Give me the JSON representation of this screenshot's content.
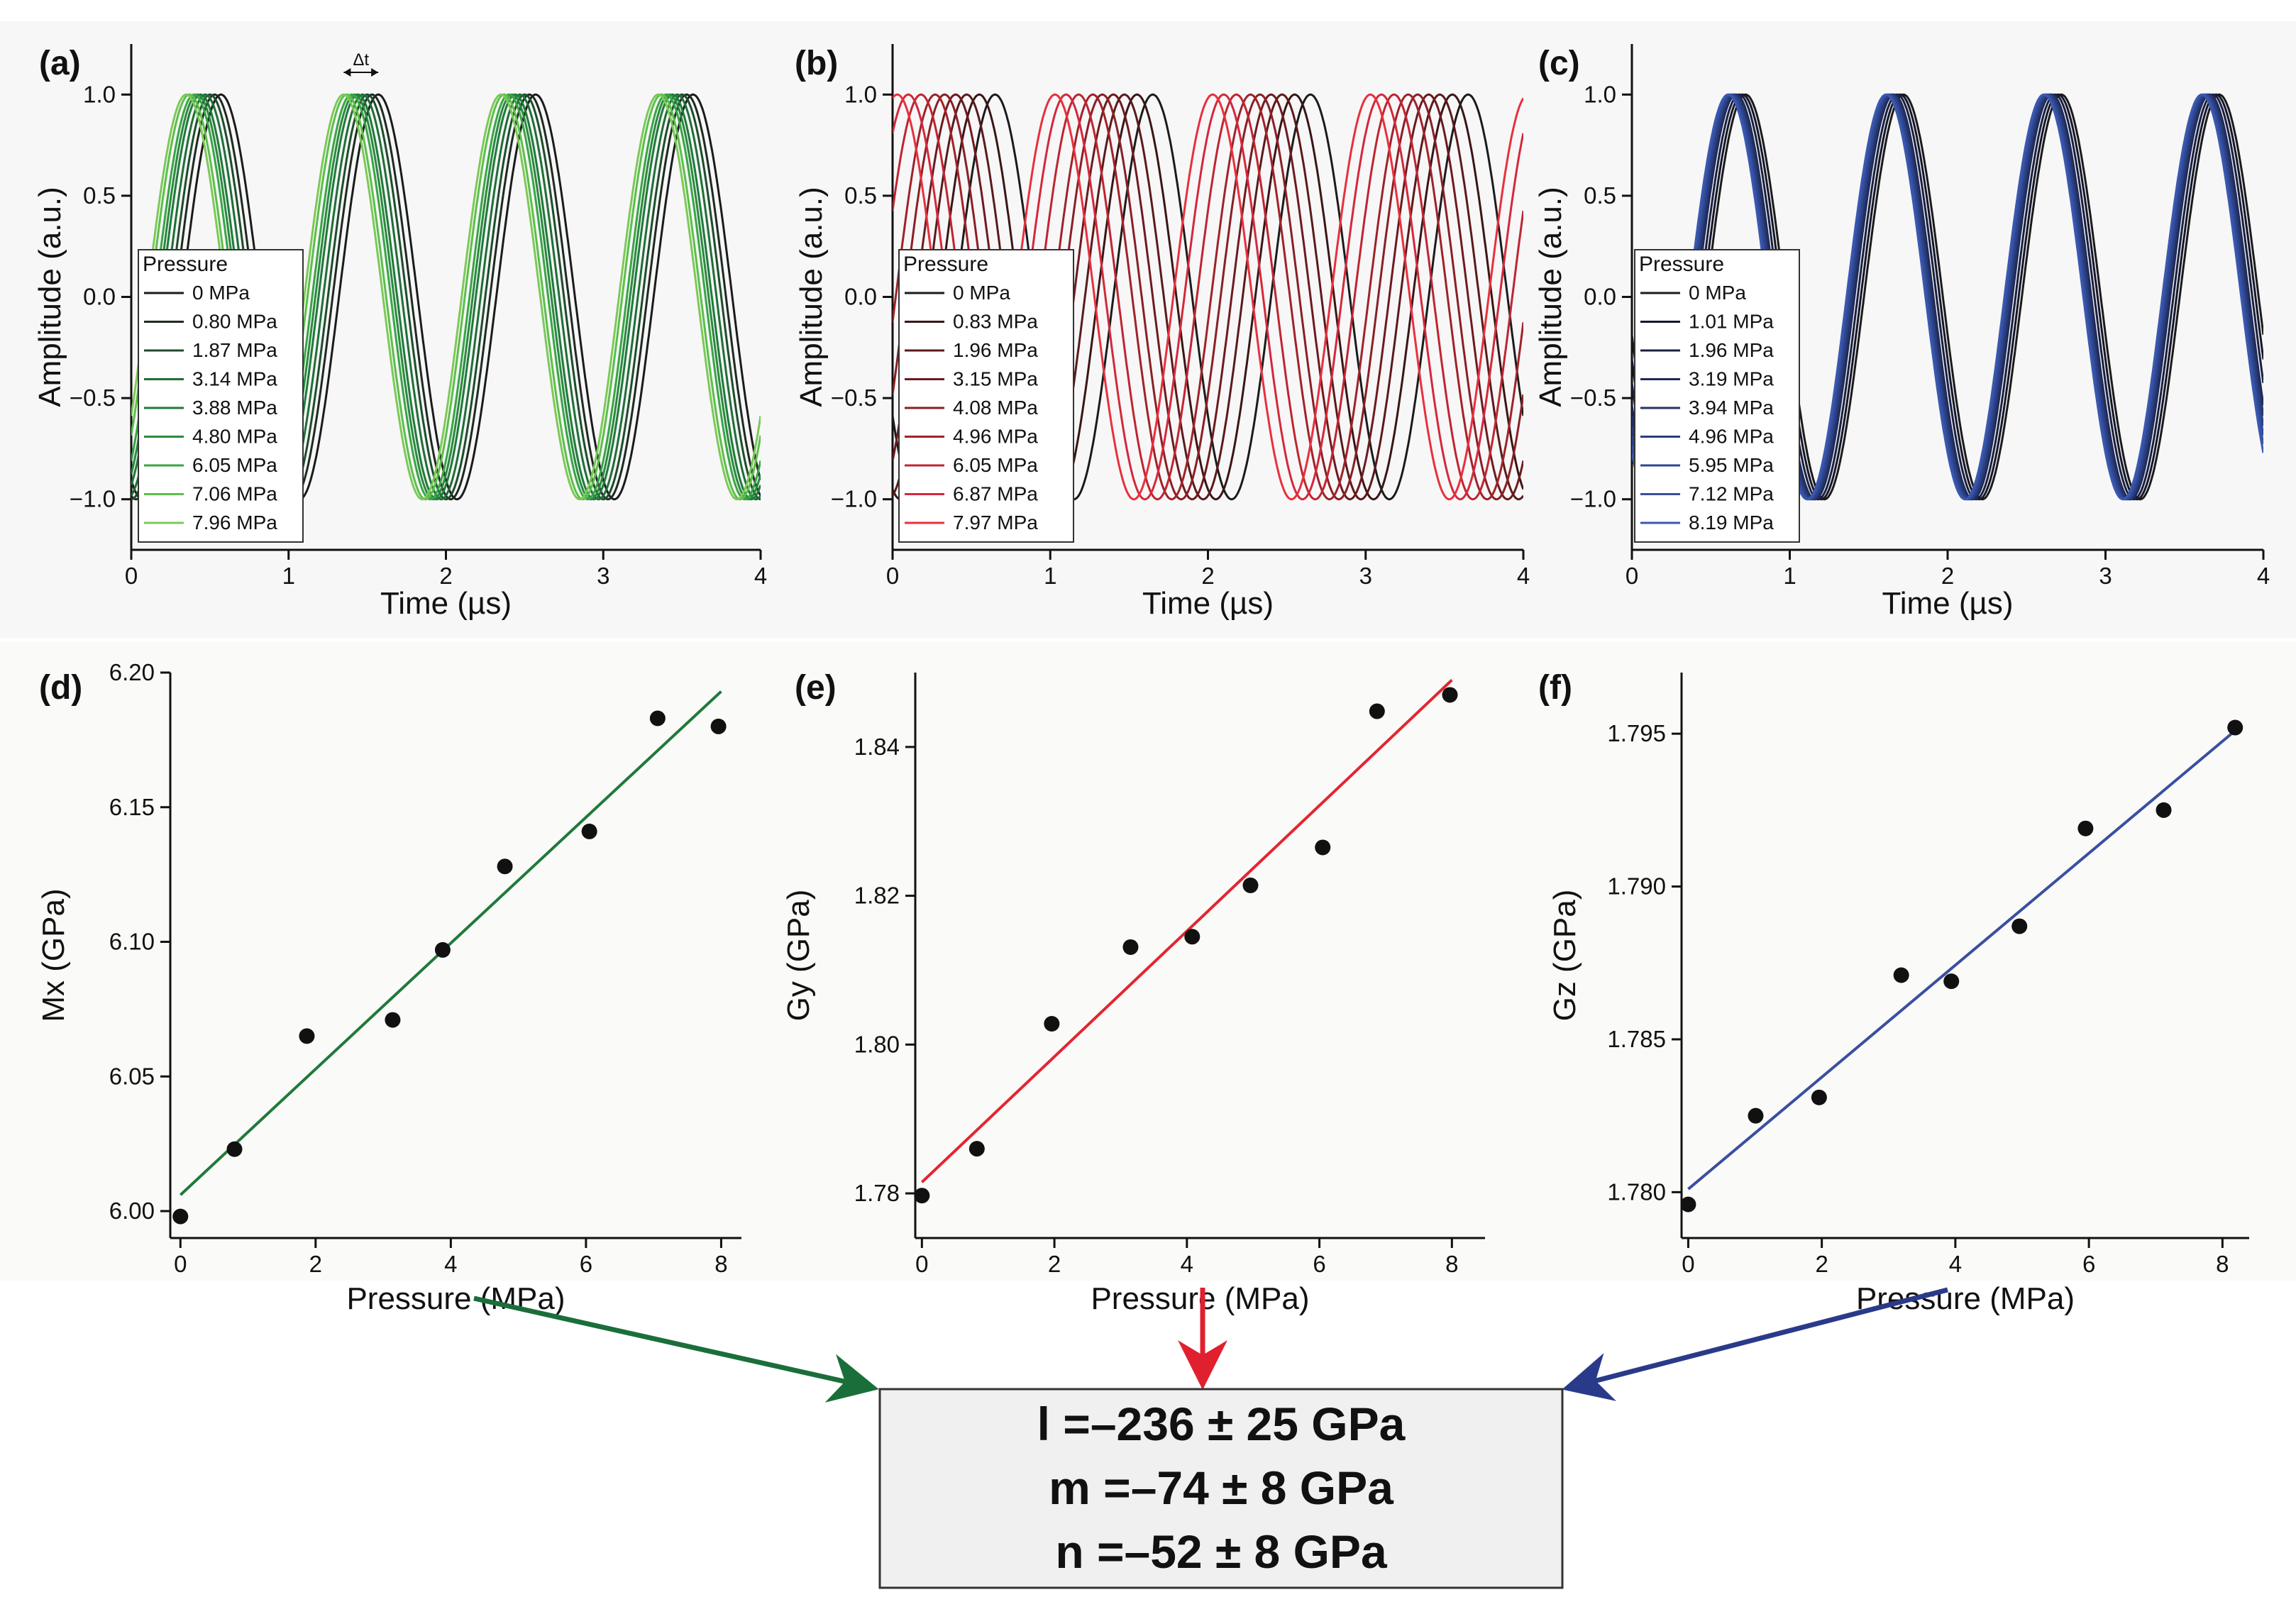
{
  "chart_data": [
    {
      "id": "a",
      "panel_label": "(a)",
      "type": "line",
      "xlabel": "Time (µs)",
      "ylabel": "Amplitude (a.u.)",
      "xlim": [
        0,
        4
      ],
      "ylim": [
        -1.25,
        1.25
      ],
      "xticks": [
        "0",
        "1",
        "2",
        "3",
        "4"
      ],
      "yticks": [
        "−1.0",
        "−0.5",
        "0.0",
        "0.5",
        "1.0"
      ],
      "ytick_values": [
        -1.0,
        -0.5,
        0.0,
        0.5,
        1.0
      ],
      "frequency_mhz": 1.0,
      "legend_title": "Pressure",
      "annotation": "Δt",
      "series": [
        {
          "name": "0 MPa",
          "color": "#1b1b1b",
          "phase_us": 0.57
        },
        {
          "name": "0.80 MPa",
          "color": "#202a20",
          "phase_us": 0.53
        },
        {
          "name": "1.87 MPa",
          "color": "#1e4d2b",
          "phase_us": 0.5
        },
        {
          "name": "3.14 MPa",
          "color": "#1f6e35",
          "phase_us": 0.47
        },
        {
          "name": "3.88 MPa",
          "color": "#1f7a3a",
          "phase_us": 0.44
        },
        {
          "name": "4.80 MPa",
          "color": "#2a8a3e",
          "phase_us": 0.42
        },
        {
          "name": "6.05 MPa",
          "color": "#39a545",
          "phase_us": 0.4
        },
        {
          "name": "7.06 MPa",
          "color": "#5cbf4a",
          "phase_us": 0.37
        },
        {
          "name": "7.96 MPa",
          "color": "#7cc957",
          "phase_us": 0.35
        }
      ]
    },
    {
      "id": "b",
      "panel_label": "(b)",
      "type": "line",
      "xlabel": "Time (µs)",
      "ylabel": "Amplitude (a.u.)",
      "xlim": [
        0,
        4
      ],
      "ylim": [
        -1.25,
        1.25
      ],
      "xticks": [
        "0",
        "1",
        "2",
        "3",
        "4"
      ],
      "yticks": [
        "−1.0",
        "−0.5",
        "0.0",
        "0.5",
        "1.0"
      ],
      "ytick_values": [
        -1.0,
        -0.5,
        0.0,
        0.5,
        1.0
      ],
      "frequency_mhz": 1.0,
      "legend_title": "Pressure",
      "series": [
        {
          "name": "0 MPa",
          "color": "#1b1b1b",
          "phase_us": 0.65
        },
        {
          "name": "0.83 MPa",
          "color": "#3a1515",
          "phase_us": 0.55
        },
        {
          "name": "1.96 MPa",
          "color": "#5a1a1a",
          "phase_us": 0.47
        },
        {
          "name": "3.15 MPa",
          "color": "#6e1a1e",
          "phase_us": 0.4
        },
        {
          "name": "4.08 MPa",
          "color": "#8a1f24",
          "phase_us": 0.33
        },
        {
          "name": "4.96 MPa",
          "color": "#a02228",
          "phase_us": 0.27
        },
        {
          "name": "6.05 MPa",
          "color": "#bf2530",
          "phase_us": 0.18
        },
        {
          "name": "6.87 MPa",
          "color": "#d4283a",
          "phase_us": 0.1
        },
        {
          "name": "7.97 MPa",
          "color": "#e8303c",
          "phase_us": 0.03
        }
      ]
    },
    {
      "id": "c",
      "panel_label": "(c)",
      "type": "line",
      "xlabel": "Time (µs)",
      "ylabel": "Amplitude (a.u.)",
      "xlim": [
        0,
        4
      ],
      "ylim": [
        -1.25,
        1.25
      ],
      "xticks": [
        "0",
        "1",
        "2",
        "3",
        "4"
      ],
      "yticks": [
        "−1.0",
        "−0.5",
        "0.0",
        "0.5",
        "1.0"
      ],
      "ytick_values": [
        -1.0,
        -0.5,
        0.0,
        0.5,
        1.0
      ],
      "frequency_mhz": 1.0,
      "legend_title": "Pressure",
      "series": [
        {
          "name": "0 MPa",
          "color": "#1b1b1b",
          "phase_us": 0.72
        },
        {
          "name": "1.01 MPa",
          "color": "#15182a",
          "phase_us": 0.7
        },
        {
          "name": "1.96 MPa",
          "color": "#1b2040",
          "phase_us": 0.68
        },
        {
          "name": "3.19 MPa",
          "color": "#1f2a55",
          "phase_us": 0.66
        },
        {
          "name": "3.94 MPa",
          "color": "#233366",
          "phase_us": 0.65
        },
        {
          "name": "4.96 MPa",
          "color": "#2a3d80",
          "phase_us": 0.64
        },
        {
          "name": "5.95 MPa",
          "color": "#2e4590",
          "phase_us": 0.63
        },
        {
          "name": "7.12 MPa",
          "color": "#3550a0",
          "phase_us": 0.62
        },
        {
          "name": "8.19 MPa",
          "color": "#3a58b0",
          "phase_us": 0.61
        }
      ]
    },
    {
      "id": "d",
      "panel_label": "(d)",
      "type": "scatter",
      "xlabel": "Pressure (MPa)",
      "ylabel": "Mx (GPa)",
      "xlim": [
        -0.15,
        8.3
      ],
      "ylim": [
        5.99,
        6.2
      ],
      "xticks": [
        "0",
        "2",
        "4",
        "6",
        "8"
      ],
      "xtick_values": [
        0,
        2,
        4,
        6,
        8
      ],
      "yticks": [
        "6.00",
        "6.05",
        "6.10",
        "6.15",
        "6.20"
      ],
      "ytick_values": [
        6.0,
        6.05,
        6.1,
        6.15,
        6.2
      ],
      "x": [
        0,
        0.8,
        1.87,
        3.14,
        3.88,
        4.8,
        6.05,
        7.06,
        7.96
      ],
      "y": [
        5.998,
        6.023,
        6.065,
        6.071,
        6.097,
        6.128,
        6.141,
        6.183,
        6.18
      ],
      "fit": {
        "x": [
          0,
          8
        ],
        "y": [
          6.006,
          6.193
        ],
        "color": "#1f7a3a"
      }
    },
    {
      "id": "e",
      "panel_label": "(e)",
      "type": "scatter",
      "xlabel": "Pressure (MPa)",
      "ylabel": "Gy (GPa)",
      "xlim": [
        -0.1,
        8.5
      ],
      "ylim": [
        1.774,
        1.85
      ],
      "xticks": [
        "0",
        "2",
        "4",
        "6",
        "8"
      ],
      "xtick_values": [
        0,
        2,
        4,
        6,
        8
      ],
      "yticks": [
        "1.78",
        "1.80",
        "1.82",
        "1.84"
      ],
      "ytick_values": [
        1.78,
        1.8,
        1.82,
        1.84
      ],
      "x": [
        0,
        0.83,
        1.96,
        3.15,
        4.08,
        4.96,
        6.05,
        6.87,
        7.97
      ],
      "y": [
        1.7797,
        1.786,
        1.8028,
        1.8131,
        1.8145,
        1.8214,
        1.8265,
        1.8448,
        1.847
      ],
      "fit": {
        "x": [
          0,
          8
        ],
        "y": [
          1.7815,
          1.849
        ],
        "color": "#e32530"
      }
    },
    {
      "id": "f",
      "panel_label": "(f)",
      "type": "scatter",
      "xlabel": "Pressure (MPa)",
      "ylabel": "Gz (GPa)",
      "xlim": [
        -0.1,
        8.4
      ],
      "ylim": [
        1.7785,
        1.797
      ],
      "xticks": [
        "0",
        "2",
        "4",
        "6",
        "8"
      ],
      "xtick_values": [
        0,
        2,
        4,
        6,
        8
      ],
      "yticks": [
        "1.780",
        "1.785",
        "1.790",
        "1.795"
      ],
      "ytick_values": [
        1.78,
        1.785,
        1.79,
        1.795
      ],
      "x": [
        0,
        1.01,
        1.96,
        3.19,
        3.94,
        4.96,
        5.95,
        7.12,
        8.19
      ],
      "y": [
        1.7796,
        1.7825,
        1.7831,
        1.7871,
        1.7869,
        1.7887,
        1.7919,
        1.7925,
        1.7952
      ],
      "fit": {
        "x": [
          0,
          8.19
        ],
        "y": [
          1.7801,
          1.7951
        ],
        "color": "#3a4fa0"
      }
    }
  ],
  "results": {
    "l": "l =–236 ± 25 GPa",
    "m": "m =–74 ± 8 GPa",
    "n": "n =–52 ± 8 GPa"
  },
  "colors": {
    "green_arrow": "#1a6e3a",
    "red_arrow": "#e0202e",
    "blue_arrow": "#2a3a8a"
  }
}
